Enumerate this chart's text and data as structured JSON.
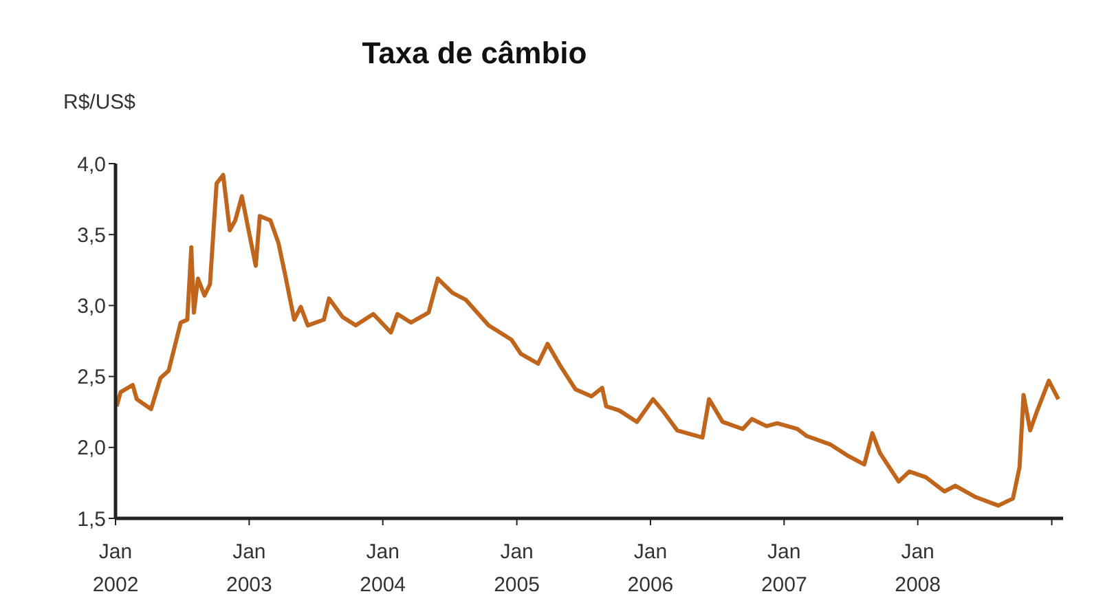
{
  "chart_data": {
    "type": "line",
    "title": "Taxa de câmbio",
    "ylabel": "R$/US$",
    "x": [
      "2002-01-04",
      "2002-01-15",
      "2002-02-17",
      "2002-02-28",
      "2002-04-08",
      "2002-05-04",
      "2002-05-26",
      "2002-06-28",
      "2002-07-16",
      "2002-07-27",
      "2002-08-03",
      "2002-08-14",
      "2002-09-01",
      "2002-09-16",
      "2002-10-04",
      "2002-10-22",
      "2002-11-09",
      "2002-11-24",
      "2002-12-12",
      "2003-01-01",
      "2003-01-19",
      "2003-01-30",
      "2003-02-28",
      "2003-03-22",
      "2003-04-09",
      "2003-05-04",
      "2003-05-22",
      "2003-06-10",
      "2003-07-24",
      "2003-08-07",
      "2003-09-13",
      "2003-10-19",
      "2003-12-06",
      "2004-01-23",
      "2004-02-10",
      "2004-03-18",
      "2004-05-05",
      "2004-05-30",
      "2004-07-09",
      "2004-08-15",
      "2004-10-16",
      "2004-12-17",
      "2005-01-12",
      "2005-02-28",
      "2005-03-26",
      "2005-05-01",
      "2005-06-10",
      "2005-07-24",
      "2005-08-22",
      "2005-09-02",
      "2005-10-08",
      "2005-11-25",
      "2006-01-08",
      "2006-02-06",
      "2006-03-15",
      "2006-05-23",
      "2006-06-10",
      "2006-07-17",
      "2006-09-10",
      "2006-10-05",
      "2006-11-14",
      "2006-12-13",
      "2007-02-06",
      "2007-03-04",
      "2007-05-08",
      "2007-06-25",
      "2007-08-08",
      "2007-08-30",
      "2007-09-20",
      "2007-11-10",
      "2007-12-09",
      "2008-01-23",
      "2008-03-14",
      "2008-04-13",
      "2008-06-07",
      "2008-08-08",
      "2008-09-17",
      "2008-10-05",
      "2008-10-16",
      "2008-11-03",
      "2008-11-21",
      "2008-12-24",
      "2009-01-19"
    ],
    "series": [
      {
        "color": "#c0651c",
        "values": [
          2.29,
          2.39,
          2.44,
          2.34,
          2.27,
          2.49,
          2.54,
          2.88,
          2.9,
          3.41,
          2.95,
          3.19,
          3.07,
          3.15,
          3.86,
          3.92,
          3.53,
          3.6,
          3.77,
          3.51,
          3.28,
          3.63,
          3.6,
          3.44,
          3.22,
          2.9,
          2.99,
          2.86,
          2.9,
          3.05,
          2.92,
          2.86,
          2.94,
          2.81,
          2.94,
          2.88,
          2.95,
          3.19,
          3.09,
          3.04,
          2.86,
          2.76,
          2.66,
          2.59,
          2.73,
          2.57,
          2.41,
          2.36,
          2.42,
          2.29,
          2.26,
          2.18,
          2.34,
          2.25,
          2.12,
          2.07,
          2.34,
          2.18,
          2.13,
          2.2,
          2.15,
          2.17,
          2.13,
          2.08,
          2.02,
          1.94,
          1.88,
          2.1,
          1.96,
          1.76,
          1.83,
          1.79,
          1.69,
          1.73,
          1.65,
          1.59,
          1.64,
          1.86,
          2.37,
          2.12,
          2.25,
          2.47,
          2.34
        ]
      }
    ],
    "xlim": [
      "2002-01-01",
      "2009-02-01"
    ],
    "xticks": [
      {
        "value": "2002-01-01",
        "label": "Jan\n2002"
      },
      {
        "value": "2003-01-01",
        "label": "Jan\n2003"
      },
      {
        "value": "2004-01-01",
        "label": "Jan\n2004"
      },
      {
        "value": "2005-01-01",
        "label": "Jan\n2005"
      },
      {
        "value": "2006-01-01",
        "label": "Jan\n2006"
      },
      {
        "value": "2007-01-01",
        "label": "Jan\n2007"
      },
      {
        "value": "2008-01-01",
        "label": "Jan\n2008"
      },
      {
        "value": "2009-01-01",
        "label": null
      }
    ],
    "ylim": [
      1.5,
      4.0
    ],
    "yticks": [
      {
        "value": 1.5,
        "label": "1,5"
      },
      {
        "value": 2.0,
        "label": "2,0"
      },
      {
        "value": 2.5,
        "label": "2,5"
      },
      {
        "value": 3.0,
        "label": "3,0"
      },
      {
        "value": 3.5,
        "label": "3,5"
      },
      {
        "value": 4.0,
        "label": "4,0"
      }
    ],
    "grid": false,
    "legend": false,
    "marker": "none",
    "line_style": "solid"
  }
}
